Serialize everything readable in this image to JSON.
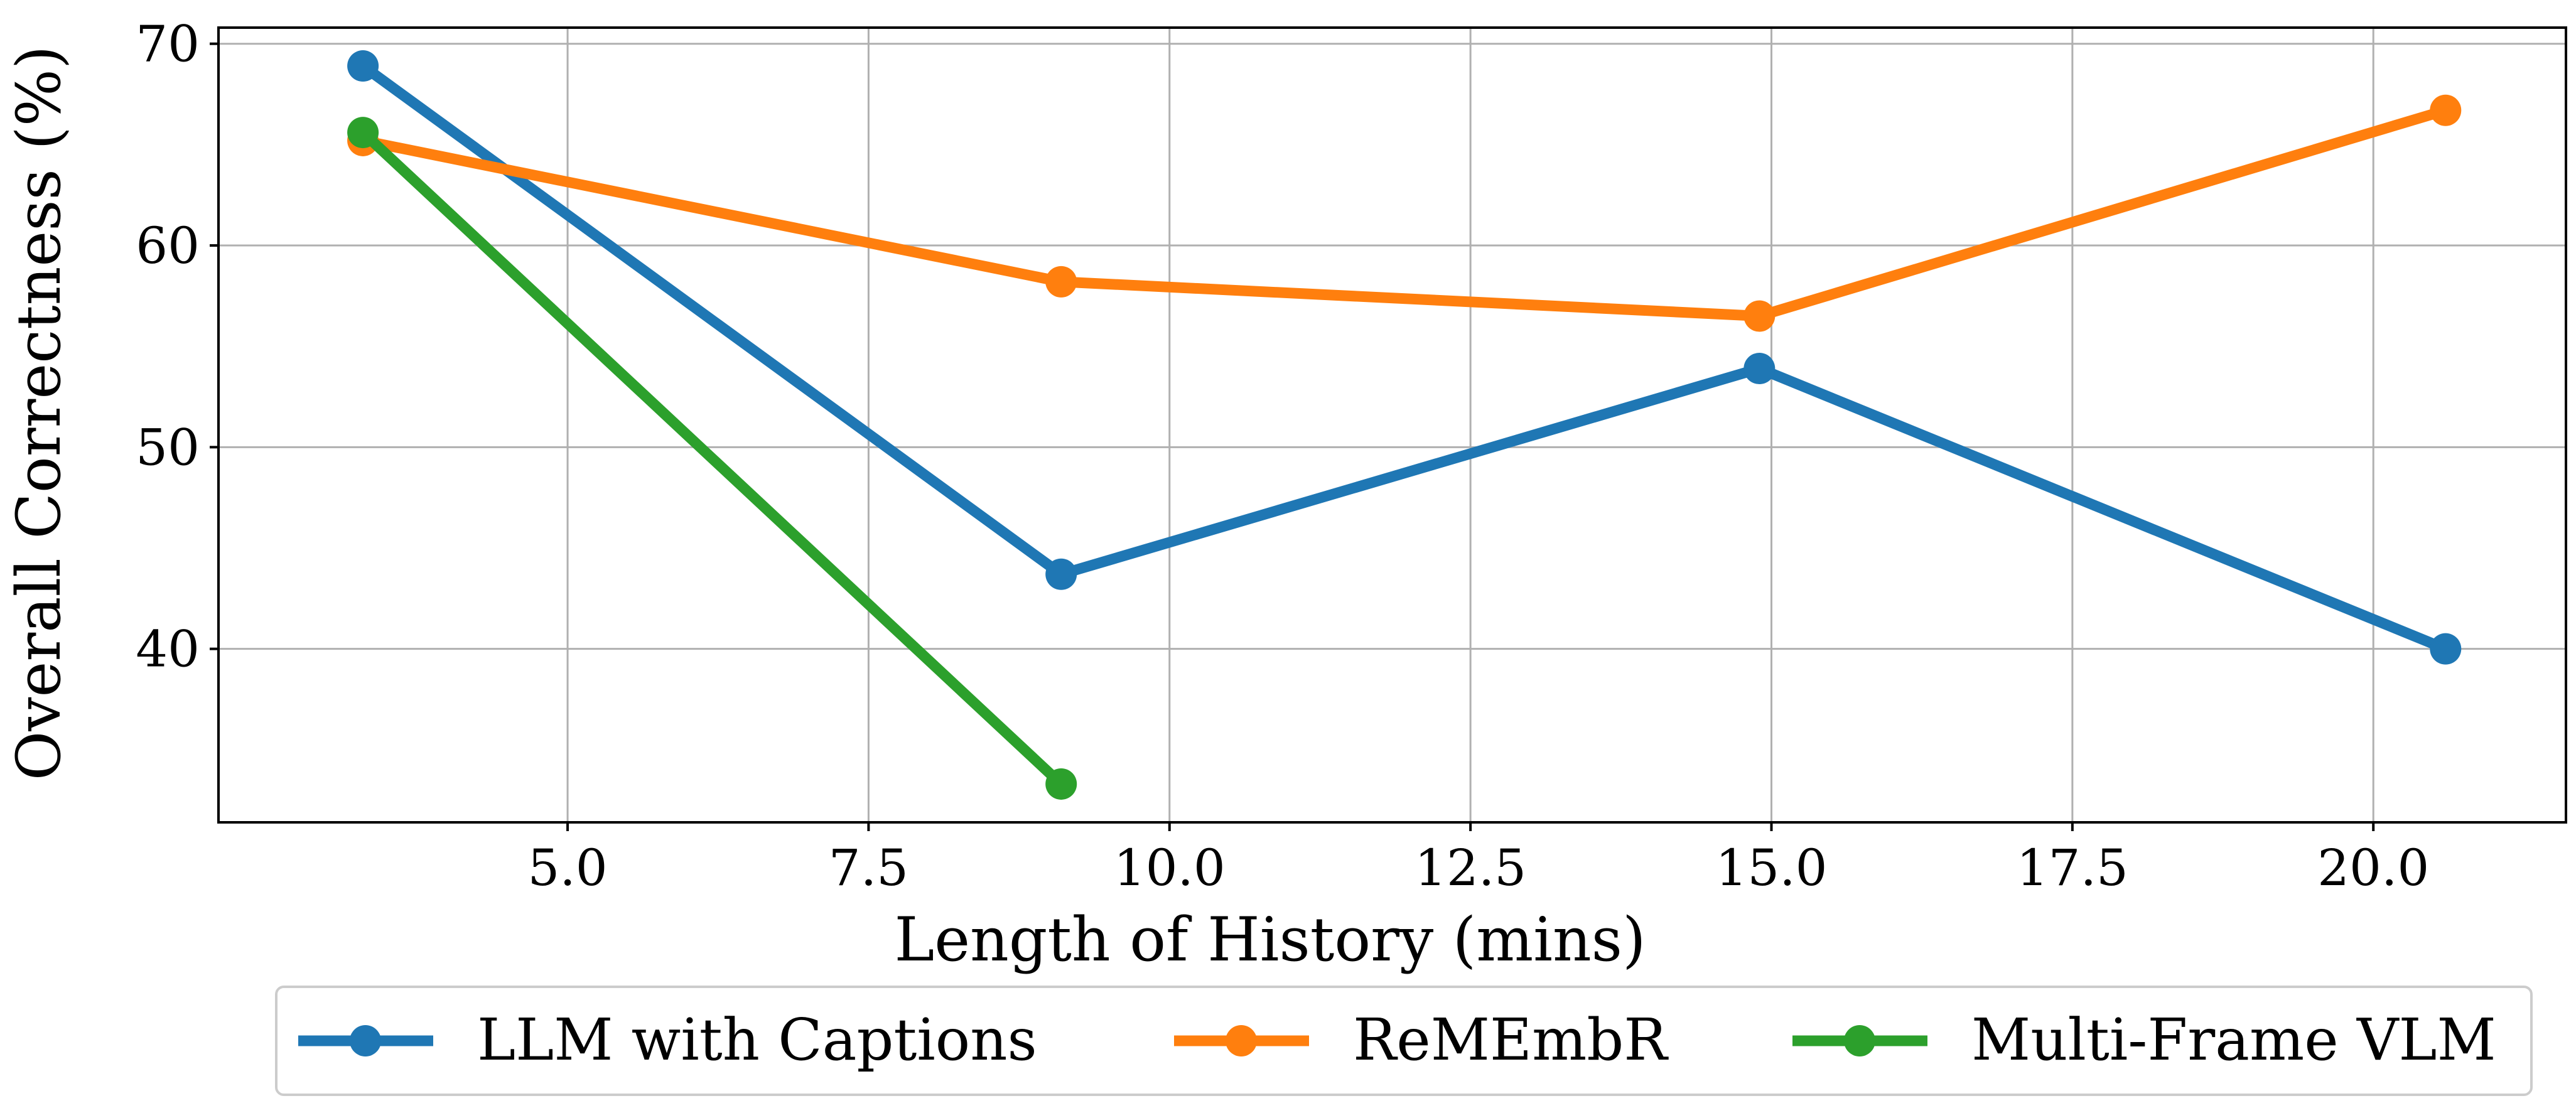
{
  "chart_data": {
    "type": "line",
    "title": "",
    "xlabel": "Length of History (mins)",
    "ylabel": "Overall Correctness (%)",
    "xlim": [
      2.1,
      21.6
    ],
    "ylim": [
      31.4,
      70.8
    ],
    "xticks": [
      5.0,
      7.5,
      10.0,
      12.5,
      15.0,
      17.5,
      20.0
    ],
    "xtick_labels": [
      "5.0",
      "7.5",
      "10.0",
      "12.5",
      "15.0",
      "17.5",
      "20.0"
    ],
    "yticks": [
      40,
      50,
      60,
      70
    ],
    "ytick_labels": [
      "40",
      "50",
      "60",
      "70"
    ],
    "grid": true,
    "legend_position": "bottom-center",
    "series": [
      {
        "name": "LLM with Captions",
        "color": "#1f77b4",
        "x": [
          3.3,
          9.1,
          14.9,
          20.6
        ],
        "y": [
          68.9,
          43.7,
          53.9,
          40.0
        ]
      },
      {
        "name": "ReMEmbR",
        "color": "#ff7f0e",
        "x": [
          3.3,
          9.1,
          14.9,
          20.6
        ],
        "y": [
          65.2,
          58.2,
          56.5,
          66.7
        ]
      },
      {
        "name": "Multi-Frame VLM",
        "color": "#2ca02c",
        "x": [
          3.3,
          9.1
        ],
        "y": [
          65.6,
          33.3
        ]
      }
    ]
  }
}
